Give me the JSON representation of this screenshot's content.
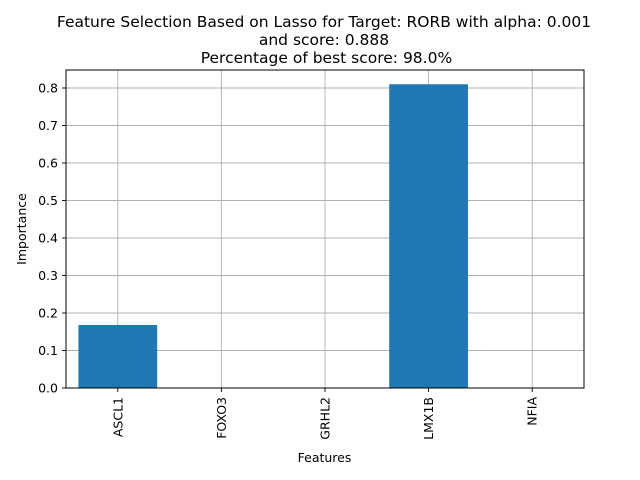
{
  "chart_data": {
    "type": "bar",
    "title_lines": [
      "Feature Selection Based on Lasso for Target: RORB with alpha: 0.001",
      "and score: 0.888",
      " Percentage of best score: 98.0%"
    ],
    "xlabel": "Features",
    "ylabel": "Importance",
    "categories": [
      "ASCL1",
      "FOXO3",
      "GRHL2",
      "LMX1B",
      "NFIA"
    ],
    "values": [
      0.168,
      0.0,
      0.0,
      0.81,
      0.0
    ],
    "ylim": [
      0.0,
      0.848
    ],
    "yticks": [
      "0.0",
      "0.1",
      "0.2",
      "0.3",
      "0.4",
      "0.5",
      "0.6",
      "0.7",
      "0.8"
    ],
    "grid": true,
    "bar_color": "#1f77b4"
  }
}
